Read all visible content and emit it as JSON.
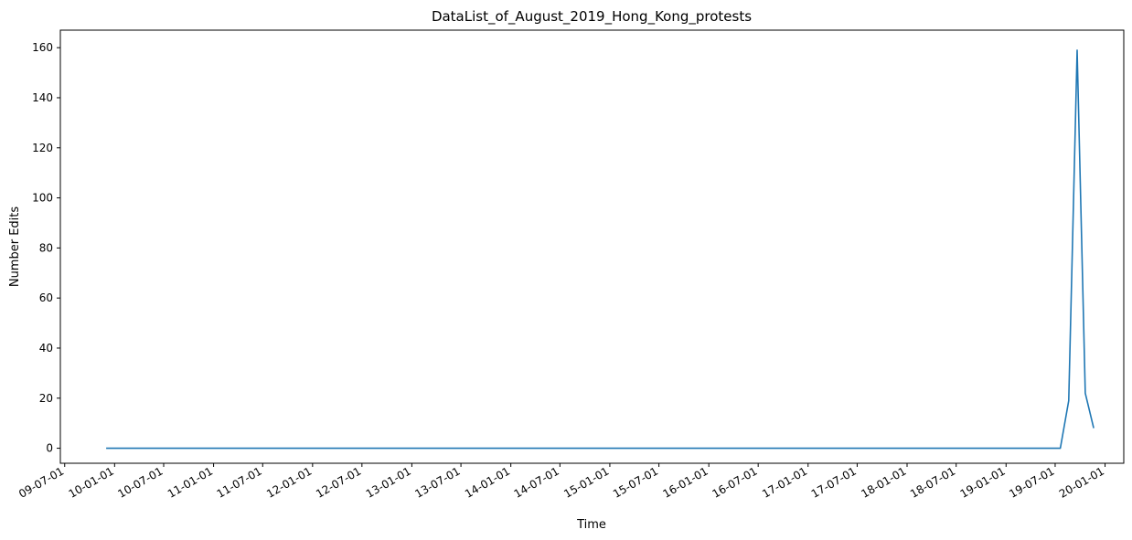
{
  "chart_data": {
    "type": "line",
    "title": "DataList_of_August_2019_Hong_Kong_protests",
    "xlabel": "Time",
    "ylabel": "Number Edits",
    "x_type": "date",
    "xlim": [
      "2009-06-15",
      "2020-03-10"
    ],
    "ylim": [
      -6,
      167
    ],
    "grid": false,
    "legend": "none",
    "y_ticks": [
      0,
      20,
      40,
      60,
      80,
      100,
      120,
      140,
      160
    ],
    "x_ticks": [
      {
        "date": "2009-07-01",
        "label": "09-07-01"
      },
      {
        "date": "2010-01-01",
        "label": "10-01-01"
      },
      {
        "date": "2010-07-01",
        "label": "10-07-01"
      },
      {
        "date": "2011-01-01",
        "label": "11-01-01"
      },
      {
        "date": "2011-07-01",
        "label": "11-07-01"
      },
      {
        "date": "2012-01-01",
        "label": "12-01-01"
      },
      {
        "date": "2012-07-01",
        "label": "12-07-01"
      },
      {
        "date": "2013-01-01",
        "label": "13-01-01"
      },
      {
        "date": "2013-07-01",
        "label": "13-07-01"
      },
      {
        "date": "2014-01-01",
        "label": "14-01-01"
      },
      {
        "date": "2014-07-01",
        "label": "14-07-01"
      },
      {
        "date": "2015-01-01",
        "label": "15-01-01"
      },
      {
        "date": "2015-07-01",
        "label": "15-07-01"
      },
      {
        "date": "2016-01-01",
        "label": "16-01-01"
      },
      {
        "date": "2016-07-01",
        "label": "16-07-01"
      },
      {
        "date": "2017-01-01",
        "label": "17-01-01"
      },
      {
        "date": "2017-07-01",
        "label": "17-07-01"
      },
      {
        "date": "2018-01-01",
        "label": "18-01-01"
      },
      {
        "date": "2018-07-01",
        "label": "18-07-01"
      },
      {
        "date": "2019-01-01",
        "label": "19-01-01"
      },
      {
        "date": "2019-07-01",
        "label": "19-07-01"
      },
      {
        "date": "2020-01-01",
        "label": "20-01-01"
      }
    ],
    "series": [
      {
        "color": "#1f77b4",
        "points": [
          {
            "x": "2009-12-01",
            "y": 0
          },
          {
            "x": "2019-07-20",
            "y": 0
          },
          {
            "x": "2019-08-20",
            "y": 19
          },
          {
            "x": "2019-09-20",
            "y": 159
          },
          {
            "x": "2019-10-20",
            "y": 22
          },
          {
            "x": "2019-11-20",
            "y": 8
          }
        ]
      }
    ]
  }
}
